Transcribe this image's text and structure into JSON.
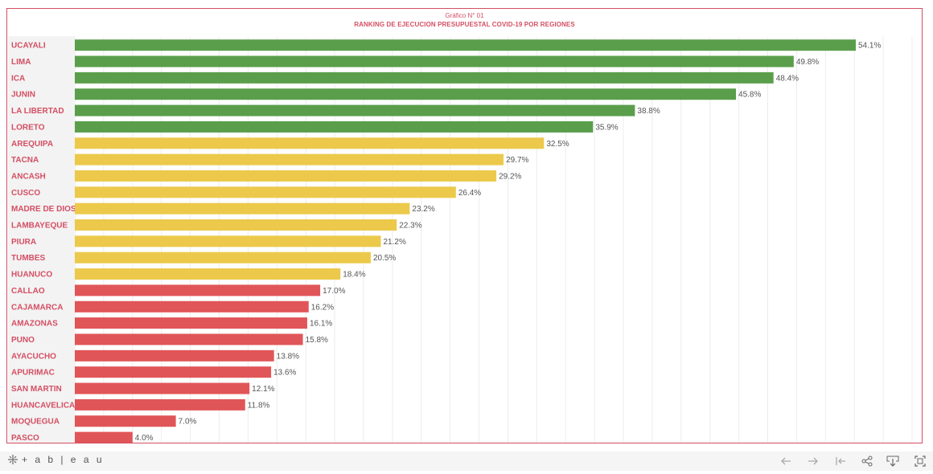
{
  "chart_data": {
    "type": "bar",
    "orientation": "horizontal",
    "subtitle": "Gráfico N° 01",
    "title": "RANKING DE EJECUCION PRESUPUESTAL COVID-19 POR REGIONES",
    "categories": [
      "UCAYALI",
      "LIMA",
      "ICA",
      "JUNIN",
      "LA LIBERTAD",
      "LORETO",
      "AREQUIPA",
      "TACNA",
      "ANCASH",
      "CUSCO",
      "MADRE DE DIOS",
      "LAMBAYEQUE",
      "PIURA",
      "TUMBES",
      "HUANUCO",
      "CALLAO",
      "CAJAMARCA",
      "AMAZONAS",
      "PUNO",
      "AYACUCHO",
      "APURIMAC",
      "SAN MARTIN",
      "HUANCAVELICA",
      "MOQUEGUA",
      "PASCO"
    ],
    "values": [
      54.1,
      49.8,
      48.4,
      45.8,
      38.8,
      35.9,
      32.5,
      29.7,
      29.2,
      26.4,
      23.2,
      22.3,
      21.2,
      20.5,
      18.4,
      17.0,
      16.2,
      16.1,
      15.8,
      13.8,
      13.6,
      12.1,
      11.8,
      7.0,
      4.0
    ],
    "value_labels": [
      "54.1%",
      "49.8%",
      "48.4%",
      "45.8%",
      "38.8%",
      "35.9%",
      "32.5%",
      "29.7%",
      "29.2%",
      "26.4%",
      "23.2%",
      "22.3%",
      "21.2%",
      "20.5%",
      "18.4%",
      "17.0%",
      "16.2%",
      "16.1%",
      "15.8%",
      "13.8%",
      "13.6%",
      "12.1%",
      "11.8%",
      "7.0%",
      "4.0%"
    ],
    "bar_colors": [
      "#5a9e4b",
      "#5a9e4b",
      "#5a9e4b",
      "#5a9e4b",
      "#5a9e4b",
      "#5a9e4b",
      "#ecc94b",
      "#ecc94b",
      "#ecc94b",
      "#ecc94b",
      "#ecc94b",
      "#ecc94b",
      "#ecc94b",
      "#ecc94b",
      "#ecc94b",
      "#e05558",
      "#e05558",
      "#e05558",
      "#e05558",
      "#e05558",
      "#e05558",
      "#e05558",
      "#e05558",
      "#e05558",
      "#e05558"
    ],
    "xlim": [
      0,
      58
    ],
    "grid": true
  },
  "colors": {
    "accent": "#d44e63",
    "label_bg": "#f3f3f3"
  },
  "footer": {
    "brand": "+ a b | e a u",
    "icons": [
      "undo-icon",
      "redo-icon",
      "revert-icon",
      "share-icon",
      "download-icon",
      "fullscreen-icon"
    ]
  }
}
